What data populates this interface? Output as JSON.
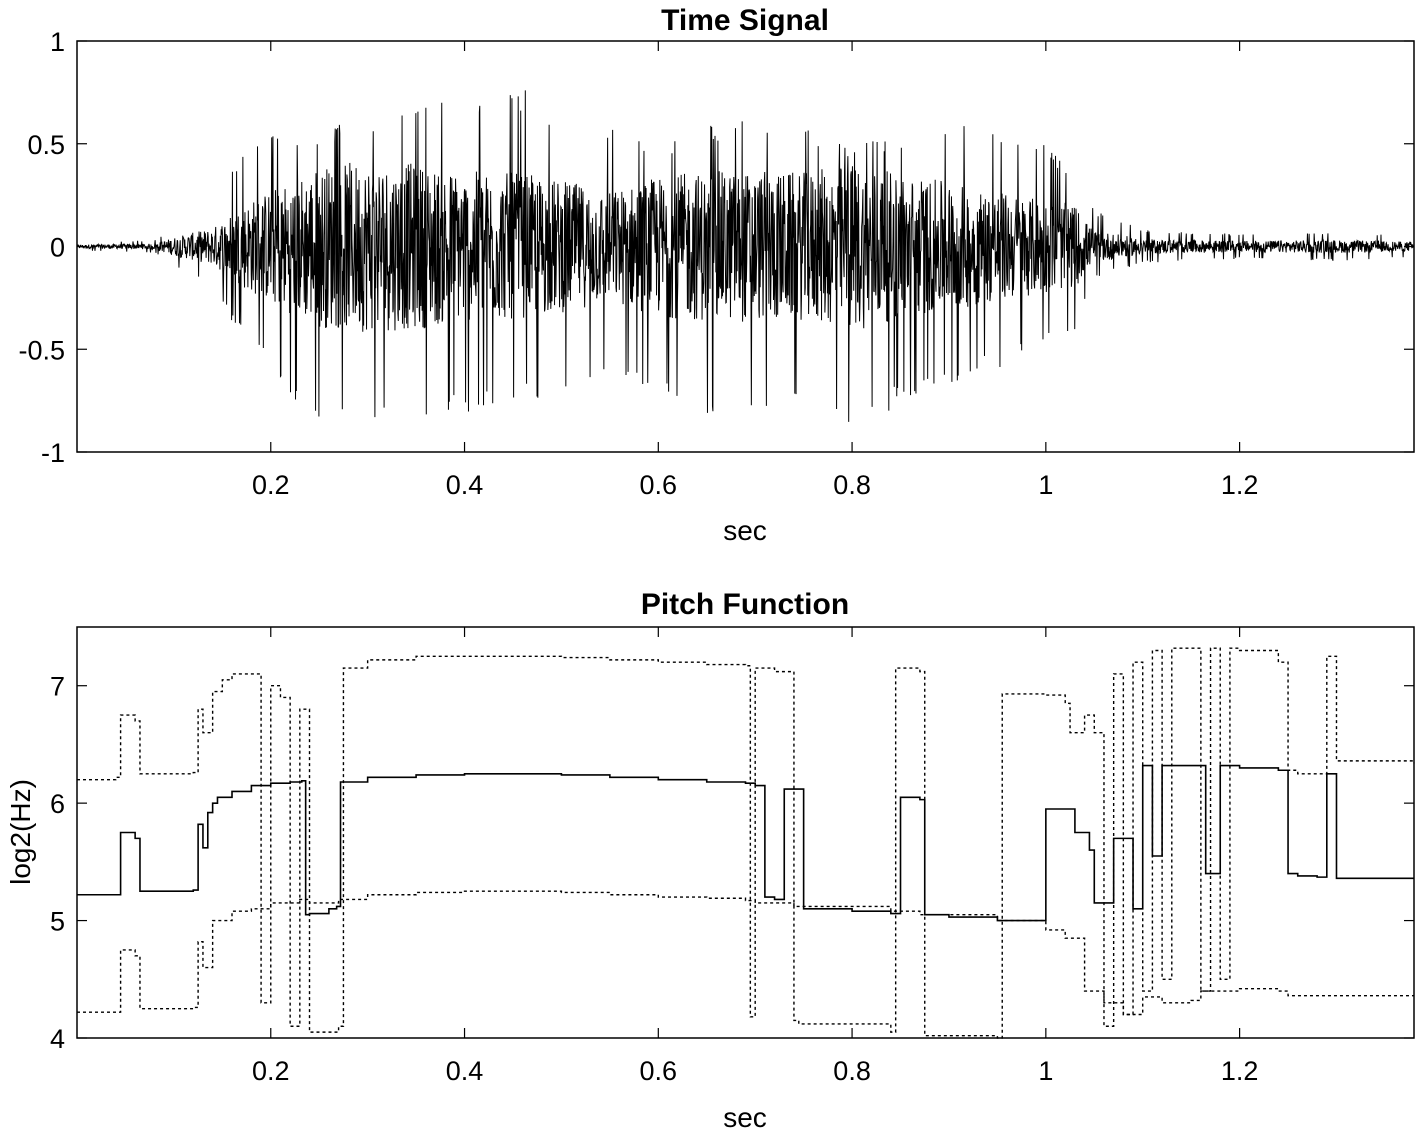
{
  "chart_data": [
    {
      "type": "line",
      "title": "Time Signal",
      "xlabel": "sec",
      "ylabel": "",
      "xlim": [
        0.0,
        1.38
      ],
      "ylim": [
        -1,
        1
      ],
      "xticks": [
        "0.2",
        "0.4",
        "0.6",
        "0.8",
        "1",
        "1.2"
      ],
      "xtick_values": [
        0.2,
        0.4,
        0.6,
        0.8,
        1.0,
        1.2
      ],
      "yticks": [
        "1",
        "0.5",
        "0",
        "-0.5",
        "-1"
      ],
      "ytick_values": [
        1,
        0.5,
        0,
        -0.5,
        -1
      ],
      "grid": false,
      "line_color": "#000000",
      "envelope": {
        "x": [
          0.0,
          0.08,
          0.1,
          0.14,
          0.17,
          0.2,
          0.25,
          0.3,
          0.35,
          0.4,
          0.45,
          0.5,
          0.55,
          0.6,
          0.65,
          0.7,
          0.75,
          0.8,
          0.85,
          0.9,
          0.95,
          1.0,
          1.03,
          1.05,
          1.1,
          1.2,
          1.3,
          1.38
        ],
        "max": [
          0.02,
          0.03,
          0.1,
          0.2,
          0.45,
          0.55,
          0.58,
          0.62,
          0.68,
          0.72,
          0.8,
          0.66,
          0.58,
          0.5,
          0.6,
          0.62,
          0.6,
          0.5,
          0.55,
          0.6,
          0.58,
          0.5,
          0.35,
          0.18,
          0.08,
          0.06,
          0.07,
          0.05
        ],
        "min": [
          -0.02,
          -0.03,
          -0.1,
          -0.2,
          -0.45,
          -0.62,
          -0.88,
          -0.93,
          -0.9,
          -0.82,
          -0.8,
          -0.72,
          -0.6,
          -0.76,
          -0.82,
          -0.82,
          -0.8,
          -0.92,
          -0.78,
          -0.7,
          -0.6,
          -0.5,
          -0.45,
          -0.15,
          -0.08,
          -0.06,
          -0.07,
          -0.05
        ]
      }
    },
    {
      "type": "line",
      "title": "Pitch Function",
      "xlabel": "sec",
      "ylabel": "log2(Hz)",
      "xlim": [
        0.0,
        1.38
      ],
      "ylim": [
        4,
        7.5
      ],
      "xticks": [
        "0.2",
        "0.4",
        "0.6",
        "0.8",
        "1",
        "1.2"
      ],
      "xtick_values": [
        0.2,
        0.4,
        0.6,
        0.8,
        1.0,
        1.2
      ],
      "yticks": [
        "7",
        "6",
        "5",
        "4"
      ],
      "ytick_values": [
        7,
        6,
        5,
        4
      ],
      "grid": false,
      "series": [
        {
          "style": "solid",
          "x": [
            0.0,
            0.04,
            0.045,
            0.06,
            0.065,
            0.12,
            0.125,
            0.13,
            0.135,
            0.14,
            0.145,
            0.16,
            0.18,
            0.2,
            0.22,
            0.232,
            0.236,
            0.24,
            0.26,
            0.268,
            0.272,
            0.3,
            0.35,
            0.4,
            0.45,
            0.5,
            0.55,
            0.6,
            0.65,
            0.69,
            0.7,
            0.71,
            0.72,
            0.73,
            0.74,
            0.75,
            0.8,
            0.84,
            0.85,
            0.87,
            0.875,
            0.9,
            0.95,
            1.0,
            1.03,
            1.045,
            1.05,
            1.07,
            1.09,
            1.1,
            1.11,
            1.12,
            1.13,
            1.15,
            1.16,
            1.165,
            1.17,
            1.18,
            1.19,
            1.2,
            1.24,
            1.25,
            1.26,
            1.28,
            1.29,
            1.3,
            1.38
          ],
          "y": [
            5.22,
            5.22,
            5.75,
            5.7,
            5.25,
            5.26,
            5.82,
            5.62,
            5.92,
            6.0,
            6.05,
            6.1,
            6.15,
            6.17,
            6.18,
            6.19,
            5.05,
            5.06,
            5.1,
            5.12,
            6.18,
            6.22,
            6.24,
            6.25,
            6.25,
            6.24,
            6.22,
            6.2,
            6.18,
            6.17,
            6.15,
            5.2,
            5.18,
            6.12,
            6.12,
            5.1,
            5.08,
            5.06,
            6.05,
            6.03,
            5.05,
            5.03,
            5.0,
            5.95,
            5.75,
            5.6,
            5.15,
            5.7,
            5.1,
            6.32,
            5.55,
            6.32,
            6.32,
            6.32,
            6.32,
            5.4,
            5.4,
            6.32,
            6.32,
            6.3,
            6.28,
            5.4,
            5.38,
            5.37,
            6.25,
            5.36,
            5.36
          ]
        },
        {
          "style": "dotted",
          "x": [
            0.0,
            0.04,
            0.045,
            0.06,
            0.065,
            0.12,
            0.125,
            0.13,
            0.14,
            0.15,
            0.16,
            0.18,
            0.19,
            0.2,
            0.21,
            0.22,
            0.23,
            0.24,
            0.27,
            0.275,
            0.3,
            0.35,
            0.4,
            0.45,
            0.5,
            0.55,
            0.6,
            0.65,
            0.69,
            0.695,
            0.7,
            0.72,
            0.74,
            0.745,
            0.84,
            0.845,
            0.87,
            0.875,
            0.95,
            0.955,
            1.0,
            1.02,
            1.025,
            1.04,
            1.05,
            1.06,
            1.07,
            1.08,
            1.09,
            1.1,
            1.11,
            1.12,
            1.13,
            1.16,
            1.17,
            1.18,
            1.19,
            1.2,
            1.24,
            1.25,
            1.26,
            1.29,
            1.3,
            1.38
          ],
          "y": [
            6.2,
            6.22,
            6.75,
            6.7,
            6.25,
            6.26,
            6.8,
            6.6,
            6.95,
            7.05,
            7.1,
            7.1,
            4.3,
            7.0,
            6.9,
            4.1,
            6.8,
            4.05,
            4.1,
            7.15,
            7.22,
            7.25,
            7.25,
            7.25,
            7.24,
            7.22,
            7.2,
            7.18,
            7.17,
            4.18,
            7.15,
            7.12,
            4.15,
            4.12,
            4.05,
            7.15,
            7.12,
            4.02,
            4.0,
            6.93,
            6.92,
            6.85,
            6.6,
            6.75,
            6.6,
            4.1,
            7.1,
            4.2,
            7.2,
            4.4,
            7.3,
            4.5,
            7.32,
            4.4,
            7.32,
            4.5,
            7.32,
            7.3,
            7.2,
            6.28,
            6.25,
            7.25,
            6.36,
            6.34
          ]
        },
        {
          "style": "dotted",
          "x": [
            0.0,
            0.04,
            0.045,
            0.06,
            0.065,
            0.12,
            0.125,
            0.13,
            0.14,
            0.16,
            0.18,
            0.2,
            0.23,
            0.24,
            0.27,
            0.3,
            0.35,
            0.4,
            0.45,
            0.5,
            0.55,
            0.6,
            0.65,
            0.69,
            0.7,
            0.72,
            0.74,
            0.84,
            0.87,
            0.95,
            1.0,
            1.02,
            1.04,
            1.06,
            1.08,
            1.1,
            1.12,
            1.15,
            1.16,
            1.2,
            1.24,
            1.25,
            1.3,
            1.38
          ],
          "y": [
            4.22,
            4.22,
            4.75,
            4.7,
            4.25,
            4.26,
            4.82,
            4.6,
            5.0,
            5.08,
            5.1,
            5.15,
            5.18,
            5.15,
            5.18,
            5.22,
            5.24,
            5.25,
            5.25,
            5.24,
            5.22,
            5.2,
            5.19,
            5.17,
            5.15,
            5.15,
            5.12,
            5.08,
            5.05,
            5.0,
            4.92,
            4.85,
            4.4,
            4.3,
            4.2,
            4.35,
            4.3,
            4.32,
            4.4,
            4.42,
            4.4,
            4.36,
            4.36,
            4.36
          ]
        }
      ]
    }
  ]
}
